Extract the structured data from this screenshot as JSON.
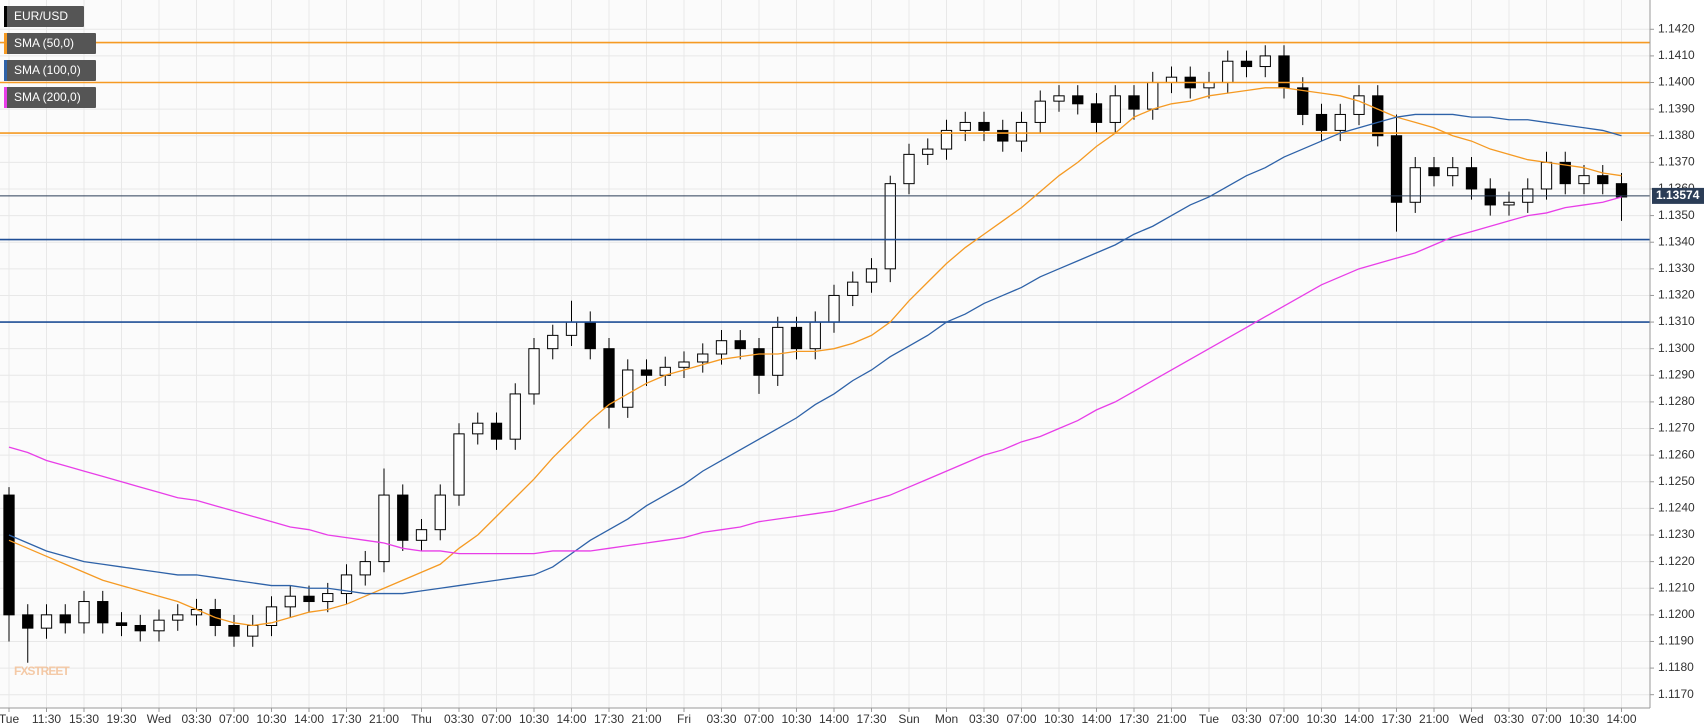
{
  "chart_data": {
    "type": "candlestick",
    "symbol": "EUR/USD",
    "watermark": "FXSTREET",
    "categories": [
      "Tue",
      null,
      "11:30",
      null,
      "15:30",
      null,
      "19:30",
      null,
      "Wed",
      null,
      "03:30",
      null,
      "07:00",
      null,
      "10:30",
      null,
      "14:00",
      null,
      "17:30",
      null,
      "21:00",
      null,
      "Thu",
      null,
      "03:30",
      null,
      "07:00",
      null,
      "10:30",
      null,
      "14:00",
      null,
      "17:30",
      null,
      "21:00",
      null,
      "Fri",
      null,
      "03:30",
      null,
      "07:00",
      null,
      "10:30",
      null,
      "14:00",
      null,
      "17:30",
      null,
      "Sun",
      null,
      "Mon",
      null,
      "03:30",
      null,
      "07:00",
      null,
      "10:30",
      null,
      "14:00",
      null,
      "17:30",
      null,
      "21:00",
      null,
      "Tue",
      null,
      "03:30",
      null,
      "07:00",
      null,
      "10:30",
      null,
      "14:00",
      null,
      "17:30",
      null,
      "21:00",
      null,
      "Wed",
      null,
      "03:30",
      null,
      "07:00",
      null,
      "10:30",
      null,
      "14:00"
    ],
    "open": [
      1.1245,
      1.12,
      1.1195,
      1.12,
      1.1197,
      1.1205,
      1.1197,
      1.1196,
      1.1194,
      1.1198,
      1.12,
      1.1202,
      1.1196,
      1.1192,
      1.1196,
      1.1203,
      1.1207,
      1.1205,
      1.1208,
      1.1215,
      1.122,
      1.1245,
      1.1228,
      1.1232,
      1.1245,
      1.1268,
      1.1272,
      1.1266,
      1.1283,
      1.13,
      1.1305,
      1.131,
      1.13,
      1.1278,
      1.1292,
      1.129,
      1.1293,
      1.1295,
      1.1298,
      1.1303,
      1.13,
      1.129,
      1.1308,
      1.13,
      1.131,
      1.132,
      1.1325,
      1.133,
      1.1362,
      1.1373,
      1.1375,
      1.1382,
      1.1385,
      1.1382,
      1.1378,
      1.1385,
      1.1393,
      1.1395,
      1.1392,
      1.1385,
      1.1395,
      1.139,
      1.14,
      1.1402,
      1.1398,
      1.14,
      1.1408,
      1.1406,
      1.141,
      1.1398,
      1.1388,
      1.1382,
      1.1388,
      1.1395,
      1.138,
      1.1355,
      1.1368,
      1.1365,
      1.1368,
      1.136,
      1.1354,
      1.1355,
      1.136,
      1.137,
      1.1362,
      1.1365,
      1.1362
    ],
    "high": [
      1.1248,
      1.1204,
      1.1204,
      1.1204,
      1.1209,
      1.1209,
      1.1201,
      1.12,
      1.1202,
      1.1204,
      1.1206,
      1.1206,
      1.12,
      1.12,
      1.1207,
      1.1211,
      1.1211,
      1.1212,
      1.1219,
      1.1224,
      1.1255,
      1.1249,
      1.1236,
      1.1249,
      1.1272,
      1.1276,
      1.1276,
      1.1287,
      1.1304,
      1.1309,
      1.1318,
      1.1314,
      1.1304,
      1.1296,
      1.1296,
      1.1297,
      1.1299,
      1.1302,
      1.1307,
      1.1307,
      1.1304,
      1.1312,
      1.1312,
      1.1314,
      1.1324,
      1.1329,
      1.1334,
      1.1365,
      1.1377,
      1.1379,
      1.1386,
      1.1389,
      1.1389,
      1.1386,
      1.1389,
      1.1397,
      1.1399,
      1.1399,
      1.1396,
      1.1399,
      1.1399,
      1.1404,
      1.1406,
      1.1406,
      1.1404,
      1.1412,
      1.1412,
      1.1414,
      1.1414,
      1.1402,
      1.1392,
      1.1392,
      1.1399,
      1.1399,
      1.1388,
      1.1372,
      1.1372,
      1.1372,
      1.1372,
      1.1364,
      1.1359,
      1.1364,
      1.1374,
      1.1374,
      1.1369,
      1.1369,
      1.1366
    ],
    "low": [
      1.119,
      1.1182,
      1.1191,
      1.1193,
      1.1193,
      1.1193,
      1.1192,
      1.119,
      1.119,
      1.1194,
      1.1196,
      1.1192,
      1.1188,
      1.1188,
      1.1192,
      1.1199,
      1.1201,
      1.1201,
      1.1204,
      1.1211,
      1.1216,
      1.1224,
      1.1224,
      1.1228,
      1.1241,
      1.1264,
      1.1262,
      1.1262,
      1.1279,
      1.1296,
      1.1301,
      1.1296,
      1.127,
      1.1274,
      1.1286,
      1.1286,
      1.1289,
      1.1291,
      1.1294,
      1.1296,
      1.1283,
      1.1286,
      1.1296,
      1.1296,
      1.1306,
      1.1316,
      1.1321,
      1.1325,
      1.1358,
      1.1369,
      1.1371,
      1.1378,
      1.1378,
      1.1374,
      1.1374,
      1.1381,
      1.1389,
      1.1388,
      1.1381,
      1.1381,
      1.1386,
      1.1386,
      1.1396,
      1.1394,
      1.1394,
      1.1396,
      1.1402,
      1.1402,
      1.1394,
      1.1384,
      1.1378,
      1.1378,
      1.1384,
      1.1376,
      1.1344,
      1.1351,
      1.1361,
      1.1361,
      1.1356,
      1.135,
      1.135,
      1.1351,
      1.1356,
      1.1358,
      1.1358,
      1.1358,
      1.1348
    ],
    "close": [
      1.12,
      1.1195,
      1.12,
      1.1197,
      1.1205,
      1.1197,
      1.1196,
      1.1194,
      1.1198,
      1.12,
      1.1202,
      1.1196,
      1.1192,
      1.1196,
      1.1203,
      1.1207,
      1.1205,
      1.1208,
      1.1215,
      1.122,
      1.1245,
      1.1228,
      1.1232,
      1.1245,
      1.1268,
      1.1272,
      1.1266,
      1.1283,
      1.13,
      1.1305,
      1.131,
      1.13,
      1.1278,
      1.1292,
      1.129,
      1.1293,
      1.1295,
      1.1298,
      1.1303,
      1.13,
      1.129,
      1.1308,
      1.13,
      1.131,
      1.132,
      1.1325,
      1.133,
      1.1362,
      1.1373,
      1.1375,
      1.1382,
      1.1385,
      1.1382,
      1.1378,
      1.1385,
      1.1393,
      1.1395,
      1.1392,
      1.1385,
      1.1395,
      1.139,
      1.14,
      1.1402,
      1.1398,
      1.14,
      1.1408,
      1.1406,
      1.141,
      1.1398,
      1.1388,
      1.1382,
      1.1388,
      1.1395,
      1.138,
      1.1355,
      1.1368,
      1.1365,
      1.1368,
      1.136,
      1.1354,
      1.1355,
      1.136,
      1.137,
      1.1362,
      1.1365,
      1.1362,
      1.1357
    ],
    "up_color": "#ffffff",
    "down_color": "#000000",
    "series": [
      {
        "name": "SMA (50,0)",
        "color": "#f59a23",
        "values": [
          1.1228,
          1.1225,
          1.1222,
          1.1219,
          1.1216,
          1.1213,
          1.1211,
          1.1209,
          1.1207,
          1.1205,
          1.1202,
          1.1199,
          1.1197,
          1.1196,
          1.1197,
          1.1199,
          1.1201,
          1.1202,
          1.1204,
          1.1207,
          1.121,
          1.1213,
          1.1216,
          1.1219,
          1.1225,
          1.123,
          1.1237,
          1.1244,
          1.1251,
          1.1259,
          1.1266,
          1.1273,
          1.1279,
          1.1283,
          1.1287,
          1.129,
          1.1292,
          1.1294,
          1.1296,
          1.1297,
          1.1298,
          1.1298,
          1.1299,
          1.1299,
          1.13,
          1.1302,
          1.1305,
          1.131,
          1.1318,
          1.1325,
          1.1332,
          1.1338,
          1.1343,
          1.1348,
          1.1353,
          1.1359,
          1.1365,
          1.137,
          1.1376,
          1.1381,
          1.1387,
          1.139,
          1.1392,
          1.1393,
          1.1395,
          1.1396,
          1.1397,
          1.1398,
          1.1398,
          1.1397,
          1.1396,
          1.1395,
          1.1393,
          1.139,
          1.1387,
          1.1385,
          1.1383,
          1.138,
          1.1378,
          1.1375,
          1.1373,
          1.1371,
          1.137,
          1.1369,
          1.1368,
          1.1366,
          1.1365
        ]
      },
      {
        "name": "SMA (100,0)",
        "color": "#2e62a8",
        "values": [
          1.123,
          1.1227,
          1.1224,
          1.1222,
          1.122,
          1.1219,
          1.1218,
          1.1217,
          1.1216,
          1.1215,
          1.1215,
          1.1214,
          1.1213,
          1.1212,
          1.1211,
          1.1211,
          1.121,
          1.121,
          1.1209,
          1.1208,
          1.1208,
          1.1208,
          1.1209,
          1.121,
          1.1211,
          1.1212,
          1.1213,
          1.1214,
          1.1215,
          1.1218,
          1.1223,
          1.1228,
          1.1232,
          1.1236,
          1.1241,
          1.1245,
          1.1249,
          1.1254,
          1.1258,
          1.1262,
          1.1266,
          1.127,
          1.1274,
          1.1279,
          1.1283,
          1.1288,
          1.1292,
          1.1297,
          1.1301,
          1.1305,
          1.131,
          1.1313,
          1.1317,
          1.132,
          1.1323,
          1.1327,
          1.133,
          1.1333,
          1.1336,
          1.1339,
          1.1343,
          1.1346,
          1.135,
          1.1354,
          1.1357,
          1.1361,
          1.1365,
          1.1368,
          1.1372,
          1.1375,
          1.1378,
          1.1381,
          1.1383,
          1.1385,
          1.1387,
          1.1388,
          1.1388,
          1.1388,
          1.1387,
          1.1387,
          1.1386,
          1.1386,
          1.1385,
          1.1384,
          1.1383,
          1.1382,
          1.138
        ]
      },
      {
        "name": "SMA (200,0)",
        "color": "#e83ee8",
        "values": [
          1.1263,
          1.1261,
          1.1258,
          1.1256,
          1.1254,
          1.1252,
          1.125,
          1.1248,
          1.1246,
          1.1244,
          1.1243,
          1.1241,
          1.1239,
          1.1237,
          1.1235,
          1.1233,
          1.1232,
          1.123,
          1.1229,
          1.1228,
          1.1227,
          1.1225,
          1.1224,
          1.1224,
          1.1223,
          1.1223,
          1.1223,
          1.1223,
          1.1223,
          1.1224,
          1.1224,
          1.1224,
          1.1225,
          1.1226,
          1.1227,
          1.1228,
          1.1229,
          1.1231,
          1.1232,
          1.1233,
          1.1235,
          1.1236,
          1.1237,
          1.1238,
          1.1239,
          1.1241,
          1.1243,
          1.1245,
          1.1248,
          1.1251,
          1.1254,
          1.1257,
          1.126,
          1.1262,
          1.1265,
          1.1267,
          1.127,
          1.1273,
          1.1277,
          1.128,
          1.1284,
          1.1288,
          1.1292,
          1.1296,
          1.13,
          1.1304,
          1.1308,
          1.1312,
          1.1316,
          1.132,
          1.1324,
          1.1327,
          1.133,
          1.1332,
          1.1334,
          1.1336,
          1.1339,
          1.1342,
          1.1344,
          1.1346,
          1.1348,
          1.135,
          1.1351,
          1.1353,
          1.1354,
          1.1355,
          1.1357
        ]
      }
    ],
    "levels": [
      {
        "value": 1.1415,
        "color": "#f59a23"
      },
      {
        "value": 1.14,
        "color": "#f59a23"
      },
      {
        "value": 1.1381,
        "color": "#f59a23"
      },
      {
        "value": 1.1341,
        "color": "#1f4e96"
      },
      {
        "value": 1.131,
        "color": "#1f4e96"
      }
    ],
    "last_price": 1.13574,
    "last_price_color": "#2b3d57",
    "ylim": [
      1.1165,
      1.1431
    ],
    "yticks": [
      {
        "value": 1.117,
        "label": "1.1170"
      },
      {
        "value": 1.118,
        "label": "1.1180"
      },
      {
        "value": 1.119,
        "label": "1.1190"
      },
      {
        "value": 1.12,
        "label": "1.1200"
      },
      {
        "value": 1.121,
        "label": "1.1210"
      },
      {
        "value": 1.122,
        "label": "1.1220"
      },
      {
        "value": 1.123,
        "label": "1.1230"
      },
      {
        "value": 1.124,
        "label": "1.1240"
      },
      {
        "value": 1.125,
        "label": "1.1250"
      },
      {
        "value": 1.126,
        "label": "1.1260"
      },
      {
        "value": 1.127,
        "label": "1.1270"
      },
      {
        "value": 1.128,
        "label": "1.1280"
      },
      {
        "value": 1.129,
        "label": "1.1290"
      },
      {
        "value": 1.13,
        "label": "1.1300"
      },
      {
        "value": 1.131,
        "label": "1.1310"
      },
      {
        "value": 1.132,
        "label": "1.1320"
      },
      {
        "value": 1.133,
        "label": "1.1330"
      },
      {
        "value": 1.134,
        "label": "1.1340"
      },
      {
        "value": 1.135,
        "label": "1.1350"
      },
      {
        "value": 1.136,
        "label": "1.1360"
      },
      {
        "value": 1.137,
        "label": "1.1370"
      },
      {
        "value": 1.138,
        "label": "1.1380"
      },
      {
        "value": 1.139,
        "label": "1.1390"
      },
      {
        "value": 1.14,
        "label": "1.1400"
      },
      {
        "value": 1.141,
        "label": "1.1410"
      },
      {
        "value": 1.142,
        "label": "1.1420"
      }
    ],
    "grid": true
  }
}
